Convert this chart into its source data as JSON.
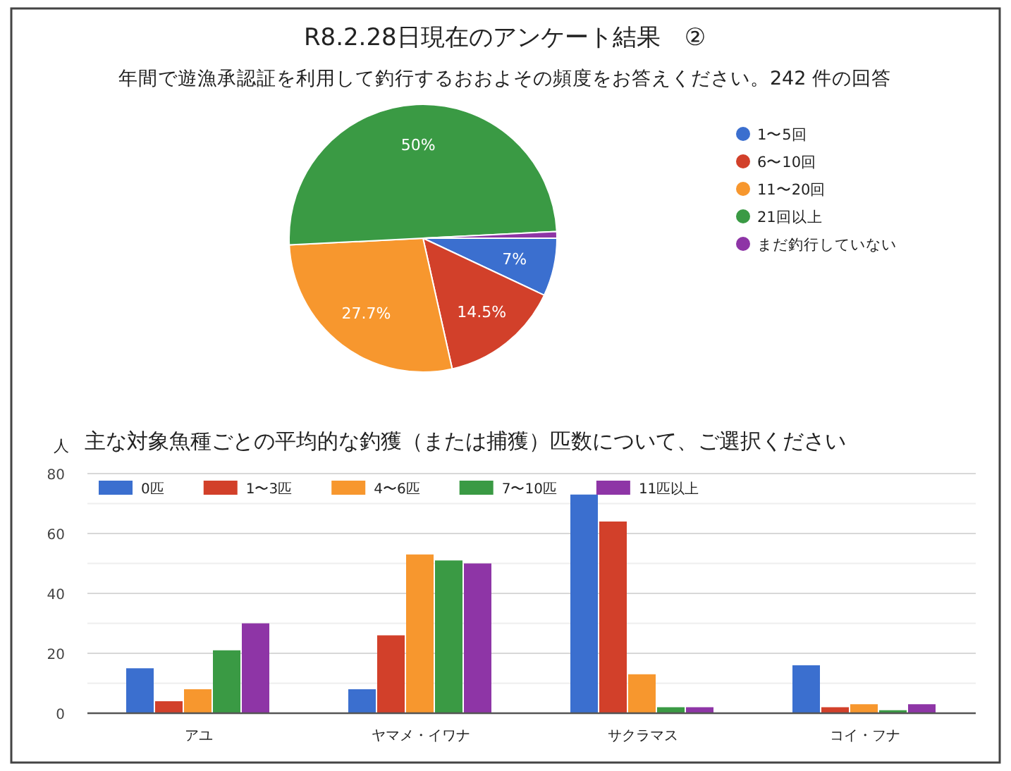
{
  "chart_data": [
    {
      "type": "pie",
      "title": "R8.2.28日現在のアンケート結果　②",
      "subtitle": "年間で遊漁承認証を利用して釣行するおおよその頻度をお答えください。242 件の回答",
      "categories": [
        "1〜5回",
        "6〜10回",
        "11〜20回",
        "21回以上",
        "まだ釣行していない"
      ],
      "values": [
        7,
        14.5,
        27.7,
        50,
        0.8
      ],
      "colors": [
        "#3b6fcf",
        "#d2402a",
        "#f7972e",
        "#3a9a44",
        "#8e35a6"
      ],
      "value_labels": [
        "7%",
        "14.5%",
        "27.7%",
        "50%",
        null
      ],
      "legend": "right"
    },
    {
      "type": "bar",
      "title": "主な対象魚種ごとの平均的な釣獲（または捕獲）匹数について、ご選択ください",
      "ylabel": "人",
      "categories": [
        "アユ",
        "ヤマメ・イワナ",
        "サクラマス",
        "コイ・フナ"
      ],
      "series": [
        {
          "name": "0匹",
          "color": "#3b6fcf",
          "values": [
            15,
            8,
            73,
            16
          ]
        },
        {
          "name": "1〜3匹",
          "color": "#d2402a",
          "values": [
            4,
            26,
            64,
            2
          ]
        },
        {
          "name": "4〜6匹",
          "color": "#f7972e",
          "values": [
            8,
            53,
            13,
            3
          ]
        },
        {
          "name": "7〜10匹",
          "color": "#3a9a44",
          "values": [
            21,
            51,
            2,
            1
          ]
        },
        {
          "name": "11匹以上",
          "color": "#8e35a6",
          "values": [
            30,
            50,
            2,
            3
          ]
        }
      ],
      "ylim": [
        0,
        80
      ],
      "yticks": [
        0,
        {
          "value": 10,
          "label": null
        },
        20,
        {
          "value": 30,
          "label": null
        },
        40,
        {
          "value": 50,
          "label": null
        },
        60,
        {
          "value": 70,
          "label": null
        },
        80
      ],
      "grid": "y",
      "legend": "top left"
    }
  ]
}
